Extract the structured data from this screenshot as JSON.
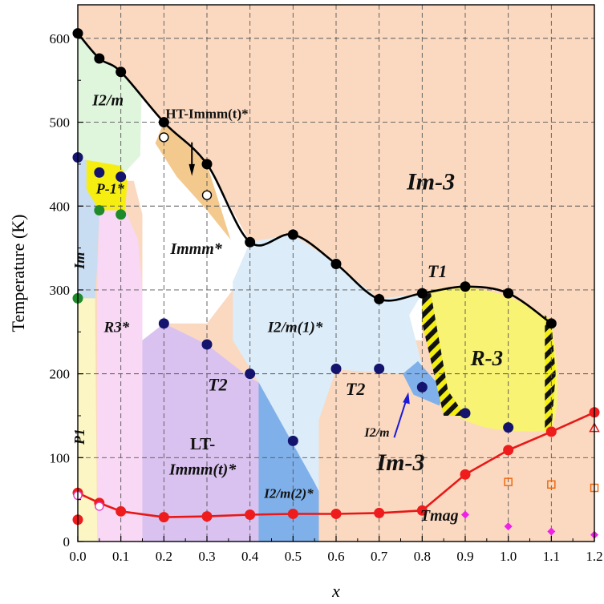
{
  "chart_data": {
    "type": "scatter",
    "xlabel": "x",
    "ylabel": "Temperature (K)",
    "xlim": [
      0.0,
      1.2
    ],
    "ylim": [
      0,
      640
    ],
    "xticks": [
      "0.0",
      "0.1",
      "0.2",
      "0.3",
      "0.4",
      "0.5",
      "0.6",
      "0.7",
      "0.8",
      "0.9",
      "1.0",
      "1.1",
      "1.2"
    ],
    "yticks": [
      "0",
      "100",
      "200",
      "300",
      "400",
      "500",
      "600"
    ],
    "grid": true,
    "colors": {
      "Im-3": "#fbd9c0",
      "I2/m": "#dff5dc",
      "P-1": "#f6ee10",
      "Im": "#c8dcf2",
      "R3": "#f8d8f4",
      "P1": "#fbf6c4",
      "HT-Immm": "#f3c98e",
      "LT-Immm": "#d9c2ef",
      "I2/m(1)": "#dcecf8",
      "I2/m(2)": "#7fb0ea",
      "R-3": "#f8f372",
      "high_T_line": "#000000",
      "T_mag_line": "#e81818"
    },
    "regions": [
      {
        "label": "Im-3",
        "text": "Im-3",
        "at": [
          0.82,
          420
        ]
      },
      {
        "label": "Im-3-low",
        "text": "Im-3",
        "at": [
          0.75,
          85
        ]
      },
      {
        "label": "I2/m",
        "text": "I2/m",
        "at": [
          0.07,
          520
        ]
      },
      {
        "label": "P-1",
        "text": "P-1*",
        "at": [
          0.075,
          415
        ]
      },
      {
        "label": "Im",
        "text": "Im",
        "at": [
          0.015,
          335
        ]
      },
      {
        "label": "R3",
        "text": "R3*",
        "at": [
          0.09,
          250
        ]
      },
      {
        "label": "P1",
        "text": "P1",
        "at": [
          0.015,
          125
        ]
      },
      {
        "label": "HT-Immm",
        "text": "HT-Immm(t)*",
        "at": [
          0.3,
          505
        ]
      },
      {
        "label": "Immm",
        "text": "Immm*",
        "at": [
          0.275,
          343
        ]
      },
      {
        "label": "LT-Immm-1",
        "text": "LT-",
        "at": [
          0.29,
          110
        ]
      },
      {
        "label": "LT-Immm-2",
        "text": "Immm(t)*",
        "at": [
          0.29,
          80
        ]
      },
      {
        "label": "I2/m(1)",
        "text": "I2/m(1)*",
        "at": [
          0.505,
          250
        ]
      },
      {
        "label": "I2/m(2)",
        "text": "I2/m(2)*",
        "at": [
          0.49,
          52
        ]
      },
      {
        "label": "R-3",
        "text": "R-3",
        "at": [
          0.95,
          210
        ]
      },
      {
        "label": "T1",
        "text": "T1",
        "at": [
          0.835,
          315
        ]
      },
      {
        "label": "T2-a",
        "text": "T2",
        "at": [
          0.325,
          180
        ]
      },
      {
        "label": "T2-b",
        "text": "T2",
        "at": [
          0.645,
          175
        ]
      },
      {
        "label": "I2/m-small",
        "text": "I2/m",
        "at": [
          0.695,
          125
        ]
      },
      {
        "label": "Tmag",
        "text": "Tmag",
        "at": [
          0.84,
          25
        ]
      }
    ],
    "series": [
      {
        "marker": "filled-black",
        "x": [
          0.0,
          0.05,
          0.1,
          0.2,
          0.3,
          0.4,
          0.5,
          0.6,
          0.7,
          0.8,
          0.9,
          1.0,
          1.1
        ],
        "y": [
          606,
          576,
          560,
          500,
          450,
          357,
          366,
          331,
          289,
          296,
          304,
          296,
          260
        ]
      },
      {
        "marker": "open-black",
        "x": [
          0.2,
          0.3
        ],
        "y": [
          482,
          413
        ]
      },
      {
        "marker": "filled-navy",
        "x": [
          0.0,
          0.05,
          0.1,
          0.2,
          0.3,
          0.4,
          0.5,
          0.6,
          0.7,
          0.8,
          0.9,
          1.0
        ],
        "y": [
          458,
          440,
          435,
          260,
          235,
          200,
          120,
          206,
          206,
          184,
          153,
          136
        ]
      },
      {
        "marker": "filled-green",
        "x": [
          0.0,
          0.05,
          0.1
        ],
        "y": [
          290,
          395,
          390
        ]
      },
      {
        "name": "Tmag",
        "marker": "filled-red",
        "x": [
          0.0,
          0.0,
          0.05,
          0.1,
          0.2,
          0.3,
          0.4,
          0.5,
          0.6,
          0.7,
          0.8,
          0.9,
          1.0,
          1.1,
          1.2
        ],
        "y": [
          26,
          58,
          46,
          36,
          29,
          30,
          32,
          33,
          33,
          34,
          37,
          80,
          109,
          131,
          154
        ]
      },
      {
        "marker": "open-pink",
        "x": [
          0.0,
          0.05
        ],
        "y": [
          55,
          42
        ]
      },
      {
        "marker": "open-orange-square",
        "x": [
          1.0,
          1.1,
          1.2
        ],
        "y": [
          71,
          68,
          64
        ]
      },
      {
        "marker": "open-red-triangle",
        "x": [
          1.2
        ],
        "y": [
          135
        ]
      },
      {
        "marker": "magenta-diamond",
        "x": [
          0.9,
          1.0,
          1.1,
          1.2
        ],
        "y": [
          32,
          18,
          12,
          8
        ]
      }
    ]
  }
}
